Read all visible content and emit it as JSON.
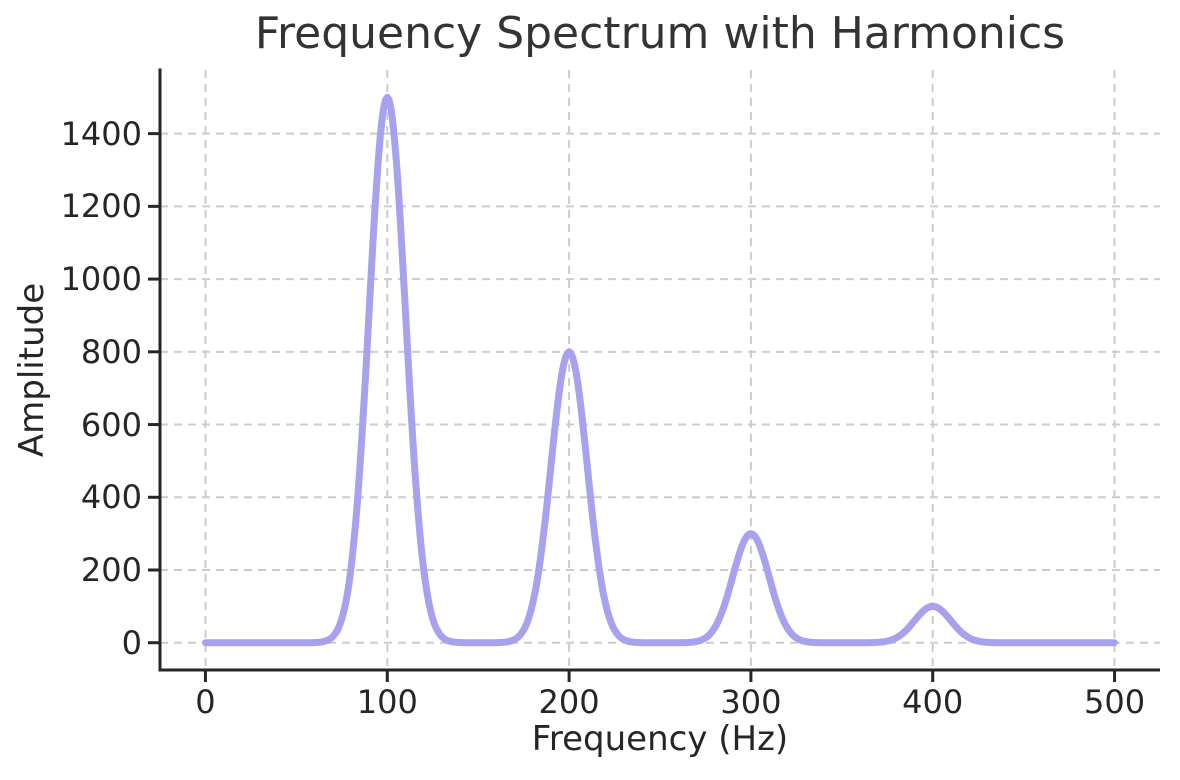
{
  "colors": {
    "background": "#ffffff",
    "title": "#333333",
    "text": "#262626",
    "axis": "#262626",
    "grid": "#cccccc",
    "line": "#a8a2ee"
  },
  "chart_data": {
    "type": "line",
    "title": "Frequency Spectrum with Harmonics",
    "xlabel": "Frequency (Hz)",
    "ylabel": "Amplitude",
    "xlim": [
      -25,
      525
    ],
    "ylim": [
      -75,
      1575
    ],
    "x_ticks": [
      0,
      100,
      200,
      300,
      400,
      500
    ],
    "y_ticks": [
      0,
      200,
      400,
      600,
      800,
      1000,
      1200,
      1400
    ],
    "grid": true,
    "grid_style": "dashed",
    "legend": "none",
    "series": [
      {
        "name": "spectrum",
        "color": "#a8a2ee",
        "line_width": 7,
        "model": "sum_of_gaussians",
        "sigma": 10,
        "x_range": [
          0,
          500
        ],
        "peaks": [
          {
            "frequency": 100,
            "amplitude": 1500
          },
          {
            "frequency": 200,
            "amplitude": 800
          },
          {
            "frequency": 300,
            "amplitude": 300
          },
          {
            "frequency": 400,
            "amplitude": 100
          }
        ]
      }
    ]
  }
}
